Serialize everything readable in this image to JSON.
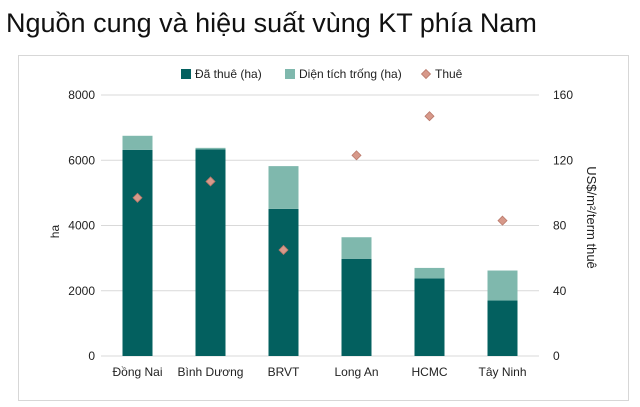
{
  "page": {
    "title": "Nguồn cung và hiệu suất vùng KT phía Nam"
  },
  "colors": {
    "leased": "#03605f",
    "vacant": "#7fb8ad",
    "rent": "#d7998a",
    "rent_stroke": "#b9786a",
    "grid": "#d9d9d9"
  },
  "chart_data": {
    "type": "bar",
    "stacked": true,
    "title": "",
    "categories": [
      "Đồng Nai",
      "Bình Dương",
      "BRVT",
      "Long An",
      "HCMC",
      "Tây Ninh"
    ],
    "series": [
      {
        "name": "Đã thuê (ha)",
        "kind": "bar",
        "axis": "left",
        "values": [
          6320,
          6330,
          4510,
          2980,
          2380,
          1700
        ]
      },
      {
        "name": "Diện tích trống (ha)",
        "kind": "bar",
        "axis": "left",
        "values": [
          430,
          50,
          1310,
          660,
          320,
          920
        ]
      },
      {
        "name": "Thuê",
        "kind": "scatter",
        "marker": "diamond",
        "axis": "right",
        "values": [
          97,
          107,
          65,
          123,
          147,
          83
        ]
      }
    ],
    "ylabel": "ha",
    "ylim": [
      0,
      8000
    ],
    "yticks": [
      0,
      2000,
      4000,
      6000,
      8000
    ],
    "y2label": "US$/m²/term thuê",
    "y2lim": [
      0,
      160
    ],
    "y2ticks": [
      0,
      40,
      80,
      120,
      160
    ],
    "grid": true,
    "legend_position": "top-center"
  }
}
